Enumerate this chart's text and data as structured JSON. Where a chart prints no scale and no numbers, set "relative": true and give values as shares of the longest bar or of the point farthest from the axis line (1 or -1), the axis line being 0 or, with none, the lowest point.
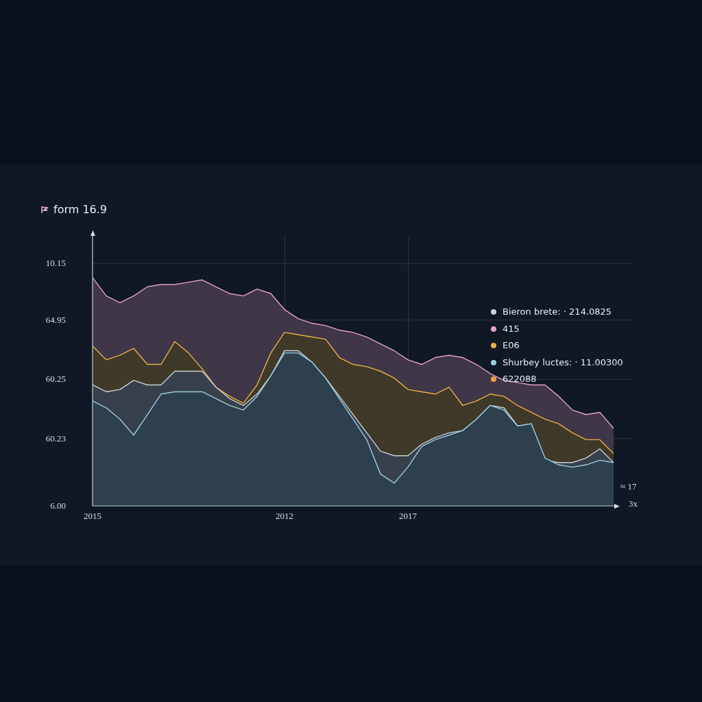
{
  "chart_data": {
    "type": "area",
    "title": "form 16.9",
    "relative": true,
    "categories": [
      "2015",
      null,
      null,
      null,
      null,
      null,
      null,
      null,
      null,
      null,
      null,
      null,
      null,
      null,
      "2012",
      null,
      null,
      null,
      null,
      null,
      null,
      null,
      null,
      "2017",
      null,
      null,
      null,
      null,
      null,
      null,
      null,
      null,
      null,
      null,
      null,
      null,
      null,
      null,
      null
    ],
    "grid": true,
    "legend": "right",
    "annotations": [
      "10.15",
      "64.95",
      "60.25",
      "60.23",
      "6.00",
      "622088",
      "≈ 17",
      "3x"
    ],
    "series": [
      {
        "name": "Bieron brete: · 214.0825",
        "color": "#c8d0d4",
        "values": [
          0.53,
          0.5,
          0.51,
          0.55,
          0.53,
          0.53,
          0.59,
          0.59,
          0.59,
          0.52,
          0.47,
          0.44,
          0.49,
          0.57,
          0.68,
          0.68,
          0.63,
          0.56,
          0.48,
          0.4,
          0.32,
          0.24,
          0.22,
          0.22,
          0.27,
          0.3,
          0.32,
          0.33,
          0.38,
          0.44,
          0.43,
          0.35,
          0.36,
          0.2,
          0.19,
          0.19,
          0.21,
          0.25,
          0.19
        ]
      },
      {
        "name": "415",
        "color": "#e8a0c8",
        "values": [
          1.0,
          0.92,
          0.89,
          0.92,
          0.96,
          0.97,
          0.97,
          0.98,
          0.99,
          0.96,
          0.93,
          0.92,
          0.95,
          0.93,
          0.86,
          0.82,
          0.8,
          0.79,
          0.77,
          0.76,
          0.74,
          0.71,
          0.68,
          0.64,
          0.62,
          0.65,
          0.66,
          0.65,
          0.62,
          0.58,
          0.55,
          0.54,
          0.53,
          0.53,
          0.48,
          0.42,
          0.4,
          0.41,
          0.34
        ]
      },
      {
        "name": "E06",
        "color": "#e8b040",
        "values": [
          0.7,
          0.64,
          0.66,
          0.69,
          0.62,
          0.62,
          0.72,
          0.67,
          0.6,
          0.52,
          0.48,
          0.45,
          0.53,
          0.67,
          0.76,
          0.75,
          0.74,
          0.73,
          0.65,
          0.62,
          0.61,
          0.59,
          0.56,
          0.51,
          0.5,
          0.49,
          0.52,
          0.44,
          0.46,
          0.49,
          0.48,
          0.44,
          0.41,
          0.38,
          0.36,
          0.32,
          0.29,
          0.29,
          0.23
        ]
      },
      {
        "name": "Shurbey luctes: · 11.00300",
        "color": "#9ccce0",
        "values": [
          0.46,
          0.43,
          0.38,
          0.31,
          0.4,
          0.49,
          0.5,
          0.5,
          0.5,
          0.47,
          0.44,
          0.42,
          0.48,
          0.57,
          0.67,
          0.67,
          0.63,
          0.56,
          0.47,
          0.38,
          0.29,
          0.14,
          0.1,
          0.17,
          0.26,
          0.29,
          0.31,
          0.33,
          0.38,
          0.44,
          0.42,
          0.35,
          0.36,
          0.21,
          0.18,
          0.17,
          0.18,
          0.2,
          0.19
        ]
      }
    ]
  }
}
